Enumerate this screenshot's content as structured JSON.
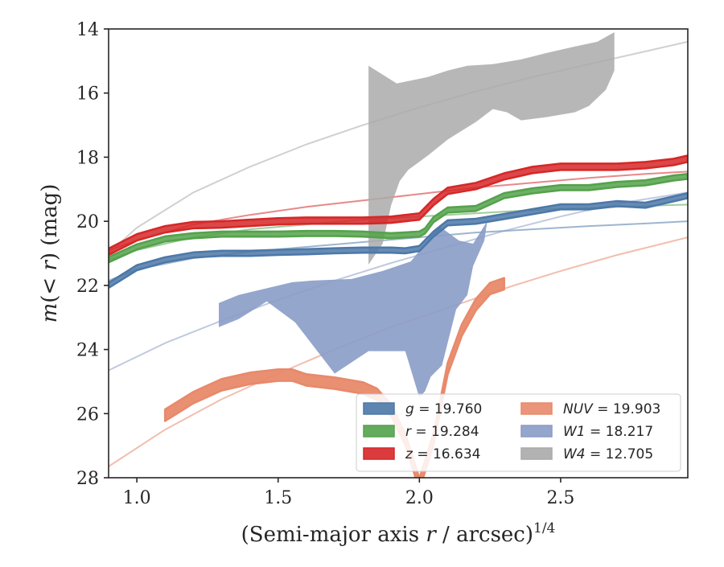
{
  "chart_data": {
    "type": "line",
    "xlabel": "(Semi-major axis r / arcsec)^1/4",
    "ylabel": "m(< r) (mag)",
    "xlim": [
      0.9,
      2.95
    ],
    "ylim": [
      28,
      14
    ],
    "y_inverted": true,
    "x_ticks": [
      1.0,
      1.5,
      2.0,
      2.5
    ],
    "x_tick_labels": [
      "1.0",
      "1.5",
      "2.0",
      "2.5"
    ],
    "y_ticks": [
      14,
      16,
      18,
      20,
      22,
      24,
      26,
      28
    ],
    "y_tick_labels": [
      "14",
      "16",
      "18",
      "20",
      "22",
      "24",
      "26",
      "28"
    ],
    "grid": false,
    "legend_position": "lower-right",
    "colors": {
      "g": "#4c78a8",
      "r": "#54a24b",
      "z": "#d62728",
      "NUV": "#e8896a",
      "W1": "#8a9cc6",
      "W4": "#aaaaaa"
    },
    "legend": [
      {
        "band": "g",
        "value": "19.760"
      },
      {
        "band": "r",
        "value": "19.284"
      },
      {
        "band": "z",
        "value": "16.634"
      },
      {
        "band": "NUV",
        "value": "19.903"
      },
      {
        "band": "W1",
        "value": "18.217"
      },
      {
        "band": "W4",
        "value": "12.705"
      }
    ],
    "series": [
      {
        "name": "g",
        "kind": "band",
        "x": [
          0.9,
          1.0,
          1.1,
          1.2,
          1.3,
          1.4,
          1.5,
          1.6,
          1.7,
          1.8,
          1.9,
          1.95,
          2.0,
          2.05,
          2.1,
          2.2,
          2.3,
          2.4,
          2.5,
          2.6,
          2.7,
          2.8,
          2.9,
          2.95
        ],
        "y": [
          22.0,
          21.45,
          21.2,
          21.05,
          21.0,
          21.0,
          20.97,
          20.95,
          20.92,
          20.9,
          20.9,
          20.92,
          20.85,
          20.4,
          20.05,
          20.0,
          19.85,
          19.7,
          19.55,
          19.55,
          19.45,
          19.5,
          19.3,
          19.2
        ],
        "half_width": 0.08
      },
      {
        "name": "r",
        "kind": "band",
        "x": [
          0.9,
          1.0,
          1.1,
          1.2,
          1.3,
          1.4,
          1.5,
          1.6,
          1.7,
          1.8,
          1.9,
          2.0,
          2.02,
          2.05,
          2.1,
          2.2,
          2.3,
          2.4,
          2.5,
          2.6,
          2.7,
          2.8,
          2.9,
          2.95
        ],
        "y": [
          21.2,
          20.8,
          20.55,
          20.45,
          20.4,
          20.4,
          20.4,
          20.38,
          20.38,
          20.4,
          20.45,
          20.4,
          20.3,
          19.95,
          19.65,
          19.6,
          19.2,
          19.05,
          18.95,
          18.95,
          18.85,
          18.8,
          18.65,
          18.6
        ],
        "half_width": 0.08
      },
      {
        "name": "z",
        "kind": "band",
        "x": [
          0.9,
          1.0,
          1.1,
          1.2,
          1.3,
          1.4,
          1.5,
          1.6,
          1.7,
          1.8,
          1.9,
          2.0,
          2.05,
          2.1,
          2.2,
          2.3,
          2.4,
          2.5,
          2.6,
          2.7,
          2.8,
          2.9,
          2.95
        ],
        "y": [
          20.95,
          20.5,
          20.25,
          20.12,
          20.1,
          20.05,
          20.0,
          19.98,
          19.98,
          19.98,
          19.95,
          19.85,
          19.4,
          19.05,
          18.9,
          18.6,
          18.4,
          18.3,
          18.3,
          18.3,
          18.25,
          18.15,
          18.05
        ],
        "half_width": 0.1
      },
      {
        "name": "NUV",
        "kind": "band",
        "x": [
          1.1,
          1.2,
          1.3,
          1.4,
          1.5,
          1.55,
          1.6,
          1.7,
          1.8,
          1.85,
          1.9,
          1.95,
          2.0,
          2.05,
          2.1,
          2.15,
          2.2,
          2.25,
          2.3
        ],
        "y": [
          26.05,
          25.5,
          25.1,
          24.9,
          24.8,
          24.8,
          24.95,
          25.05,
          25.2,
          25.4,
          25.9,
          26.8,
          28.2,
          26.8,
          24.6,
          23.4,
          22.6,
          22.1,
          21.95
        ],
        "half_width": 0.18
      },
      {
        "name": "W1",
        "kind": "polygon",
        "polygon_x": [
          1.29,
          1.36,
          1.55,
          1.62,
          1.76,
          1.87,
          1.97,
          2.07,
          2.14,
          2.19,
          2.24,
          2.23,
          2.19,
          2.17,
          2.13,
          2.08,
          2.04,
          2.02,
          2.0,
          1.95,
          1.82,
          1.7,
          1.56,
          1.46,
          1.36,
          1.29
        ],
        "polygon_y": [
          22.55,
          22.3,
          21.9,
          21.85,
          21.8,
          21.55,
          21.25,
          20.15,
          20.6,
          20.7,
          20.0,
          20.6,
          21.4,
          22.3,
          22.75,
          24.5,
          24.85,
          25.3,
          25.5,
          24.05,
          24.05,
          24.75,
          23.15,
          22.5,
          23.05,
          23.3
        ]
      },
      {
        "name": "W4",
        "kind": "polygon",
        "polygon_x": [
          1.82,
          1.92,
          2.03,
          2.1,
          2.17,
          2.26,
          2.36,
          2.45,
          2.55,
          2.63,
          2.69,
          2.69,
          2.66,
          2.6,
          2.55,
          2.45,
          2.36,
          2.31,
          2.26,
          2.2,
          2.1,
          2.03,
          1.96,
          1.93,
          1.9,
          1.87,
          1.82
        ],
        "polygon_y": [
          15.15,
          15.7,
          15.5,
          15.3,
          15.15,
          15.1,
          14.95,
          14.75,
          14.55,
          14.4,
          14.1,
          15.3,
          15.9,
          16.4,
          16.6,
          16.75,
          16.85,
          16.6,
          16.5,
          16.9,
          17.45,
          17.95,
          18.4,
          18.75,
          19.5,
          20.7,
          21.35
        ]
      },
      {
        "name": "g",
        "kind": "model",
        "x": [
          0.9,
          1.0,
          1.2,
          1.4,
          1.6,
          1.8,
          2.0,
          2.2,
          2.4,
          2.6,
          2.8,
          2.95
        ],
        "y": [
          21.85,
          21.5,
          21.15,
          20.95,
          20.8,
          20.65,
          20.5,
          20.35,
          20.25,
          20.15,
          20.07,
          20.0
        ]
      },
      {
        "name": "r",
        "kind": "model",
        "x": [
          0.9,
          1.0,
          1.2,
          1.4,
          1.6,
          1.8,
          2.0,
          2.2,
          2.4,
          2.6,
          2.8,
          2.95
        ],
        "y": [
          21.2,
          20.9,
          20.5,
          20.25,
          20.1,
          19.95,
          19.85,
          19.75,
          19.65,
          19.58,
          19.52,
          19.48
        ]
      },
      {
        "name": "z",
        "kind": "model",
        "x": [
          0.9,
          1.0,
          1.2,
          1.4,
          1.6,
          1.8,
          2.0,
          2.2,
          2.4,
          2.6,
          2.8,
          2.95
        ],
        "y": [
          20.9,
          20.6,
          20.1,
          19.8,
          19.55,
          19.35,
          19.15,
          18.95,
          18.8,
          18.65,
          18.52,
          18.45
        ]
      },
      {
        "name": "NUV",
        "kind": "model",
        "x": [
          0.9,
          1.1,
          1.3,
          1.5,
          1.7,
          1.9,
          2.1,
          2.3,
          2.5,
          2.7,
          2.95
        ],
        "y": [
          27.65,
          26.5,
          25.55,
          24.75,
          24.0,
          23.3,
          22.7,
          22.1,
          21.55,
          21.05,
          20.5
        ]
      },
      {
        "name": "W1",
        "kind": "model",
        "x": [
          0.9,
          1.1,
          1.3,
          1.5,
          1.7,
          1.9,
          2.1,
          2.3,
          2.5,
          2.7,
          2.95
        ],
        "y": [
          24.65,
          23.8,
          23.1,
          22.45,
          21.85,
          21.3,
          20.8,
          20.3,
          19.85,
          19.45,
          19.1
        ]
      },
      {
        "name": "W4",
        "kind": "model",
        "x": [
          0.9,
          1.0,
          1.2,
          1.4,
          1.6,
          1.8,
          2.0,
          2.2,
          2.4,
          2.6,
          2.8,
          2.95
        ],
        "y": [
          21.0,
          20.2,
          19.1,
          18.3,
          17.6,
          17.0,
          16.45,
          15.95,
          15.5,
          15.1,
          14.7,
          14.4
        ]
      }
    ]
  }
}
